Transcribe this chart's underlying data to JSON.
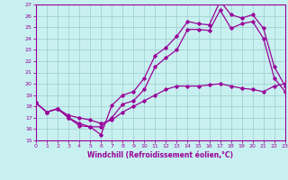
{
  "xlabel": "Windchill (Refroidissement éolien,°C)",
  "xlim": [
    0,
    23
  ],
  "ylim": [
    15,
    27
  ],
  "yticks": [
    15,
    16,
    17,
    18,
    19,
    20,
    21,
    22,
    23,
    24,
    25,
    26,
    27
  ],
  "xticks": [
    0,
    1,
    2,
    3,
    4,
    5,
    6,
    7,
    8,
    9,
    10,
    11,
    12,
    13,
    14,
    15,
    16,
    17,
    18,
    19,
    20,
    21,
    22,
    23
  ],
  "background_color": "#c8f0f0",
  "line_color": "#990099",
  "grid_color": "#99cccc",
  "series": [
    {
      "x": [
        0,
        1,
        2,
        3,
        4,
        5,
        6,
        7,
        8,
        9,
        10,
        11,
        12,
        13,
        14,
        15,
        16,
        17,
        18,
        19,
        20,
        21,
        22,
        23
      ],
      "y": [
        18.3,
        17.5,
        17.8,
        17.0,
        16.3,
        16.2,
        15.5,
        18.1,
        19.0,
        19.3,
        20.5,
        22.5,
        23.2,
        24.2,
        25.5,
        25.3,
        25.2,
        27.3,
        26.1,
        25.8,
        26.1,
        24.9,
        21.5,
        19.8
      ]
    },
    {
      "x": [
        0,
        1,
        2,
        3,
        4,
        5,
        6,
        7,
        8,
        9,
        10,
        11,
        12,
        13,
        14,
        15,
        16,
        17,
        18,
        19,
        20,
        21,
        22,
        23
      ],
      "y": [
        18.3,
        17.5,
        17.8,
        17.0,
        16.5,
        16.2,
        16.2,
        17.0,
        18.2,
        18.5,
        19.5,
        21.5,
        22.3,
        23.0,
        24.8,
        24.8,
        24.7,
        26.5,
        24.9,
        25.3,
        25.5,
        24.0,
        20.5,
        19.3
      ]
    },
    {
      "x": [
        0,
        1,
        2,
        3,
        4,
        5,
        6,
        7,
        8,
        9,
        10,
        11,
        12,
        13,
        14,
        15,
        16,
        17,
        18,
        19,
        20,
        21,
        22,
        23
      ],
      "y": [
        18.3,
        17.5,
        17.8,
        17.2,
        17.0,
        16.8,
        16.5,
        16.8,
        17.5,
        18.0,
        18.5,
        19.0,
        19.5,
        19.8,
        19.8,
        19.8,
        19.9,
        20.0,
        19.8,
        19.6,
        19.5,
        19.3,
        19.8,
        20.0
      ]
    }
  ]
}
